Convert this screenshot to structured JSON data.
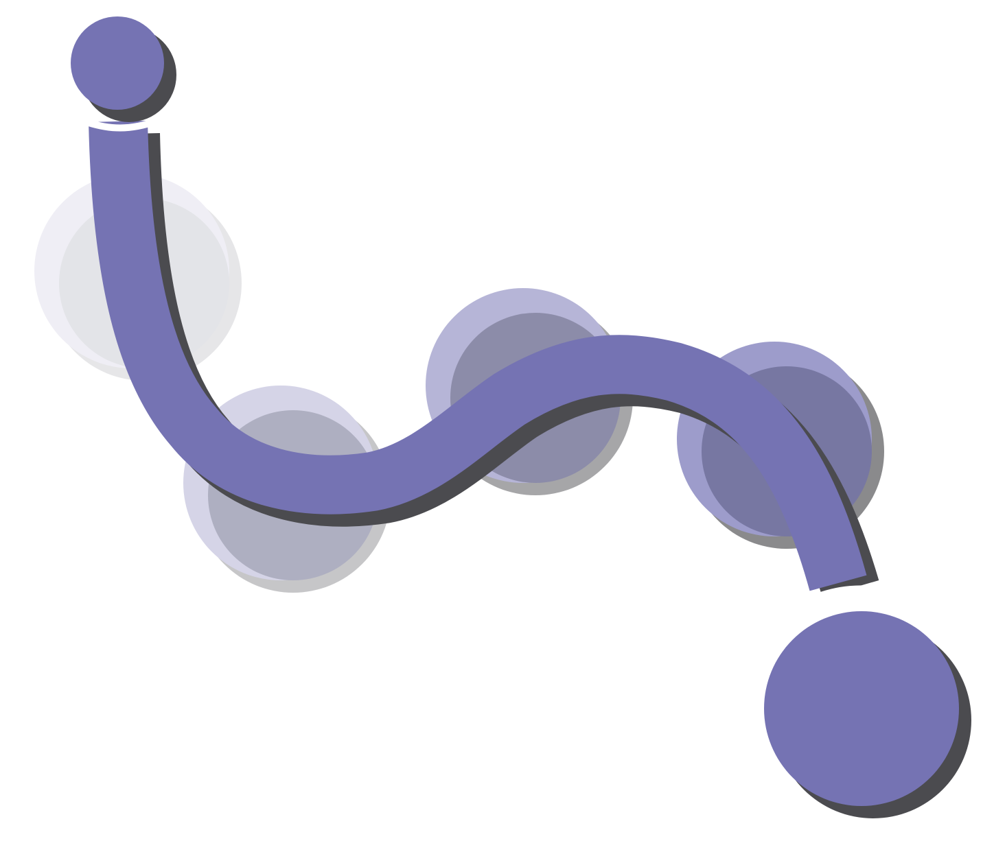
{
  "icon": {
    "name": "motion-path-icon",
    "colors": {
      "accent": "#7573B3",
      "shadow": "#4B4B4F",
      "background": "#FFFFFF"
    },
    "ghost_circles": [
      {
        "fill": "#EFEEF5",
        "shadow": "#E6E6E8",
        "inner": "#E3E4E8"
      },
      {
        "fill": "#D5D4E7",
        "shadow": "#C6C6C8",
        "inner": "#AEAFC1"
      },
      {
        "fill": "#B6B5D7",
        "shadow": "#A6A6A8",
        "inner": "#8C8CA9"
      },
      {
        "fill": "#9D9CCB",
        "shadow": "#8A8A8C",
        "inner": "#7777A2"
      }
    ]
  }
}
